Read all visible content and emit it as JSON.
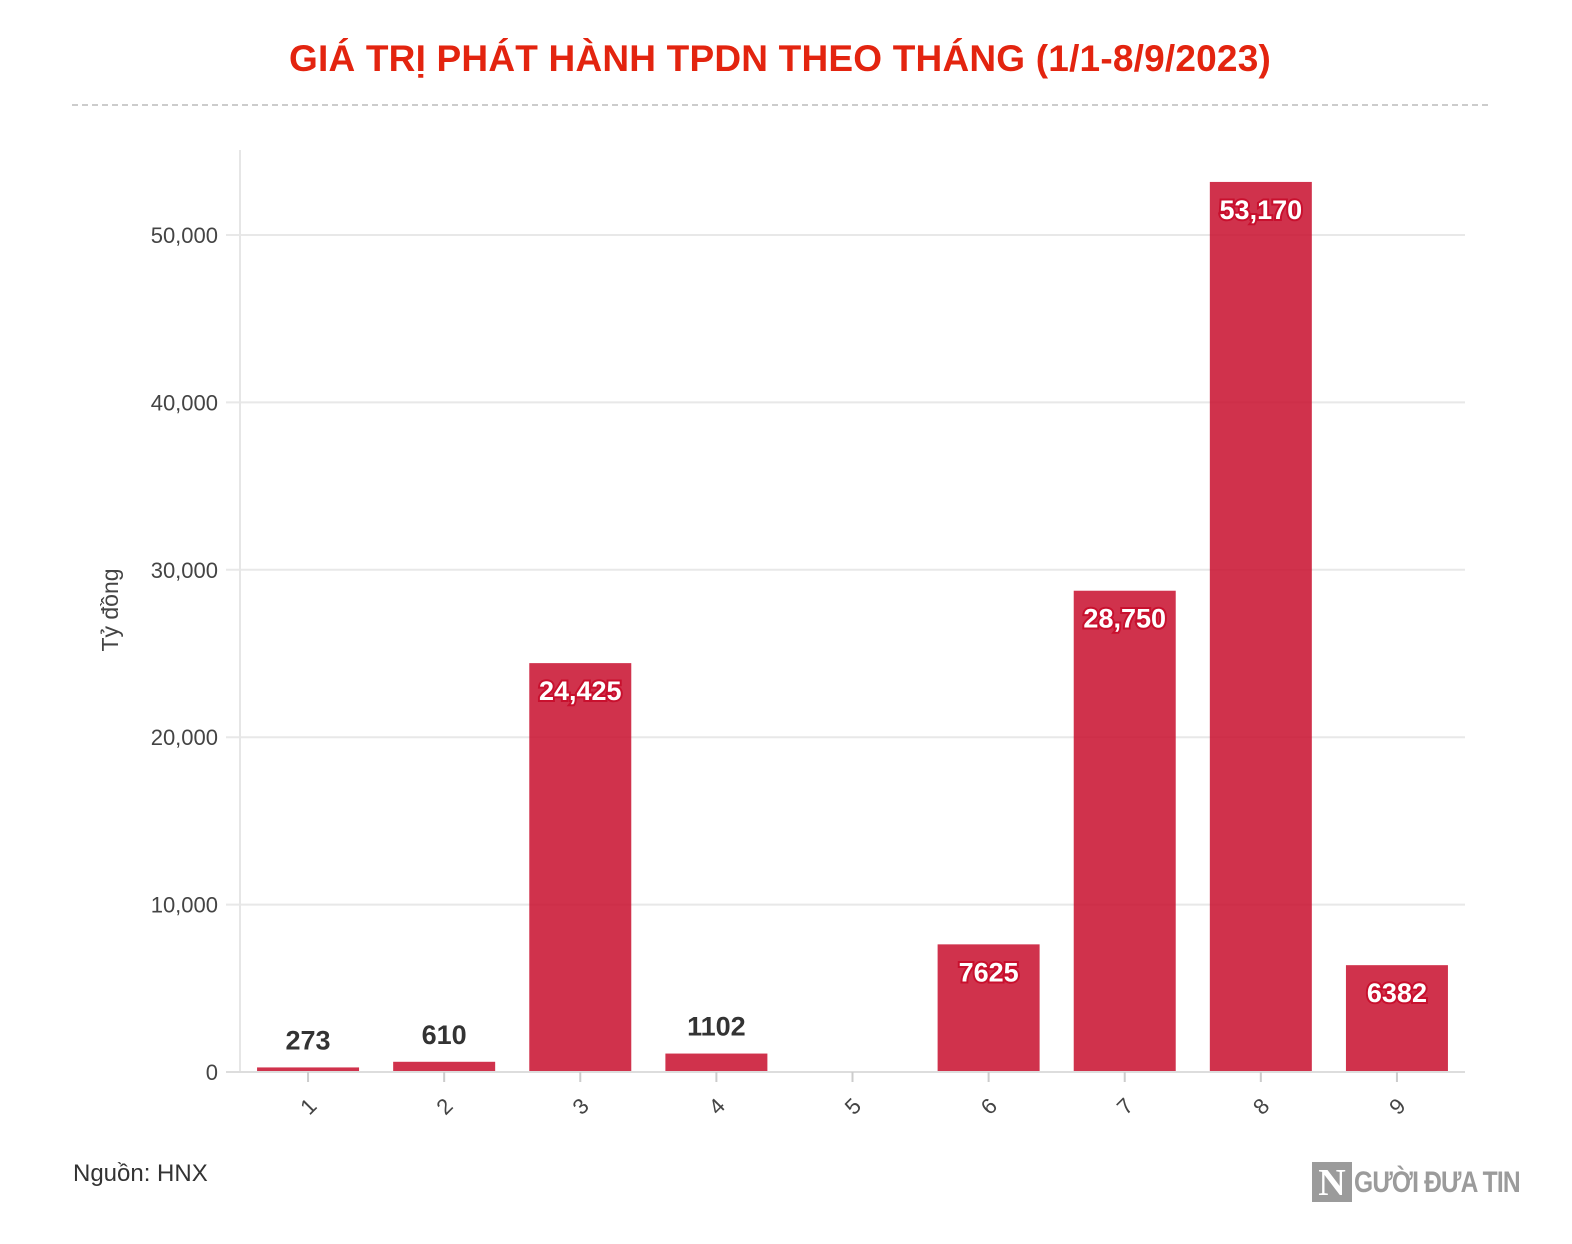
{
  "chart_data": {
    "type": "bar",
    "title": "GIÁ TRỊ PHÁT HÀNH TPDN THEO THÁNG (1/1-8/9/2023)",
    "xlabel": "",
    "ylabel": "Tỷ đồng",
    "categories": [
      "1",
      "2",
      "3",
      "4",
      "5",
      "6",
      "7",
      "8",
      "9"
    ],
    "values": [
      273,
      610,
      24425,
      1102,
      0,
      7625,
      28750,
      53170,
      6382
    ],
    "data_labels": [
      "273",
      "610",
      "24,425",
      "1102",
      "",
      "7625",
      "28,750",
      "53,170",
      "6382"
    ],
    "ylim": [
      0,
      55000
    ],
    "yticks": [
      0,
      10000,
      20000,
      30000,
      40000,
      50000
    ],
    "ytick_labels": [
      "0",
      "10,000",
      "20,000",
      "30,000",
      "40,000",
      "50,000"
    ],
    "grid": true,
    "bar_color": "#c8102e"
  },
  "source": "Nguồn: HNX",
  "logo": {
    "letter": "N",
    "text": "GƯỜI ĐƯA TIN"
  },
  "colors": {
    "title": "#e3240f",
    "bar": "#c8102e"
  }
}
